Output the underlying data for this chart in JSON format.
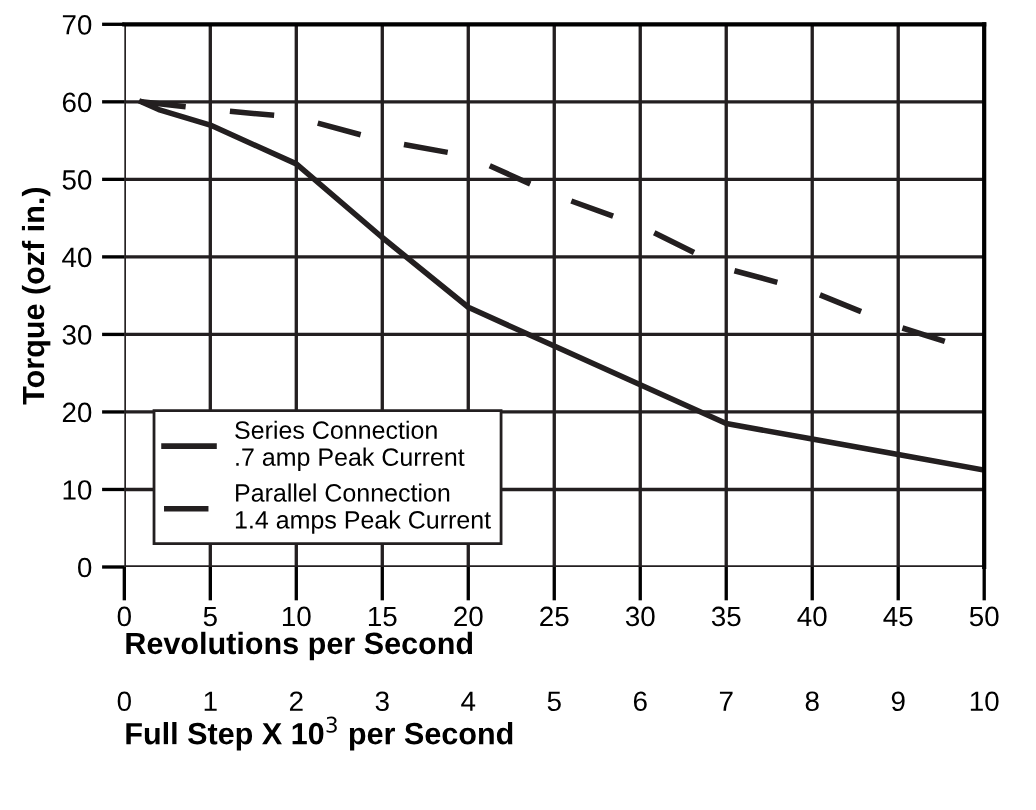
{
  "chart_data": {
    "type": "line",
    "ylabel": "Torque (ozf in.)",
    "xlabel": "Revolutions per Second",
    "x2label": "Full Step X 10$^{3}$ per Second",
    "xlim": [
      0,
      50
    ],
    "xticks": [
      0,
      5,
      10,
      15,
      20,
      25,
      30,
      35,
      40,
      45,
      50
    ],
    "ylim": [
      0,
      70
    ],
    "yticks": [
      0,
      10,
      20,
      30,
      40,
      50,
      60,
      70
    ],
    "x2lim": [
      0,
      10
    ],
    "x2ticks": [
      0,
      1,
      2,
      3,
      4,
      5,
      6,
      7,
      8,
      9,
      10
    ],
    "grid": true,
    "legend": "left",
    "marker": "none",
    "series": [
      {
        "name": "Series Connection\n.7 amp Peak Current",
        "color": "#231f20",
        "line_style": "solid",
        "x": [
          1,
          2,
          5,
          10,
          15,
          20,
          25,
          30,
          35,
          40,
          45,
          50
        ],
        "values": [
          60,
          59,
          57,
          52,
          42.5,
          33.5,
          28.5,
          23.5,
          18.5,
          16.5,
          14.5,
          12.5
        ]
      },
      {
        "name": "Parallel Connection\n1.4 amps Peak Current",
        "color": "#231f20",
        "line_style": "dashed",
        "x": [
          1,
          5,
          10,
          15,
          20,
          25,
          30,
          35,
          40,
          45,
          50
        ],
        "values": [
          60,
          59,
          58,
          55,
          53,
          48,
          44,
          38.5,
          35.5,
          31,
          27.5
        ]
      }
    ]
  }
}
